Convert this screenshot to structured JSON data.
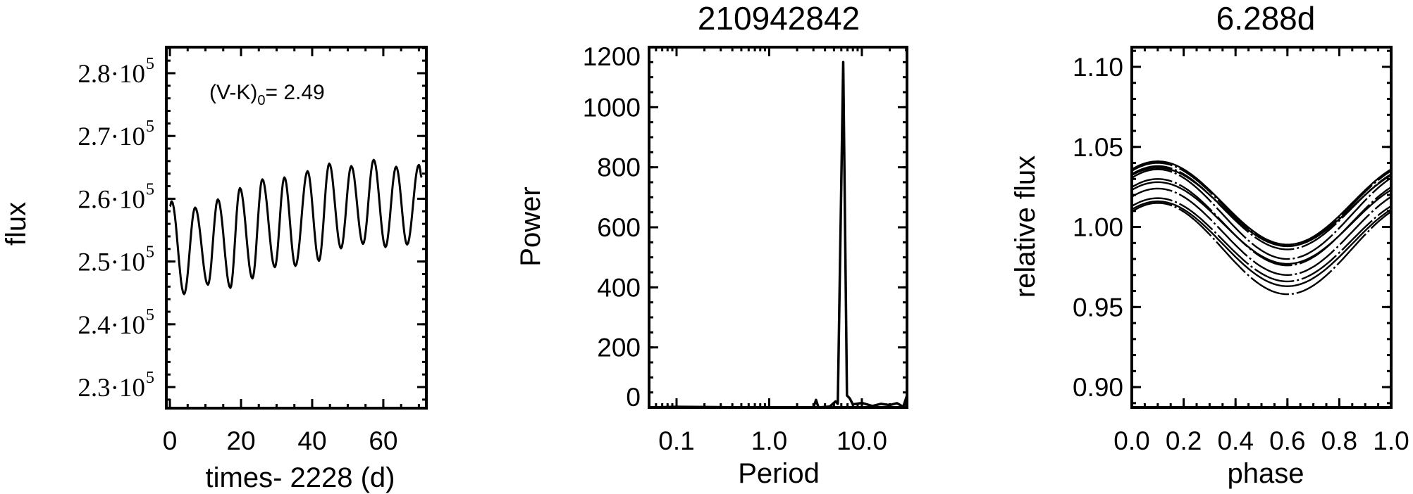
{
  "chart_data": [
    {
      "type": "line",
      "title": "",
      "xlabel": "times- 2228 (d)",
      "ylabel": "flux",
      "xlim": [
        -1,
        72.1
      ],
      "ylim": [
        226640,
        284150
      ],
      "xticks": [
        0,
        20,
        40,
        60
      ],
      "xtick_labels": [
        "0",
        "20",
        "40",
        "60"
      ],
      "yticks": [
        230000,
        240000,
        250000,
        260000,
        270000,
        280000
      ],
      "ytick_labels": [
        {
          "mantissa": "2.3",
          "base": "10",
          "exp": "5"
        },
        {
          "mantissa": "2.4",
          "base": "10",
          "exp": "5"
        },
        {
          "mantissa": "2.5",
          "base": "10",
          "exp": "5"
        },
        {
          "mantissa": "2.6",
          "base": "10",
          "exp": "5"
        },
        {
          "mantissa": "2.7",
          "base": "10",
          "exp": "5"
        },
        {
          "mantissa": "2.8",
          "base": "10",
          "exp": "5"
        }
      ],
      "annotation": {
        "prefix": "(V-K)",
        "subscript": "0",
        "suffix": "= 2.49"
      },
      "extrema": [
        [
          0,
          258800
        ],
        [
          0.5,
          259600
        ],
        [
          4.0,
          244800
        ],
        [
          7.1,
          258600
        ],
        [
          10.7,
          246300
        ],
        [
          13.5,
          259900
        ],
        [
          17.0,
          245800
        ],
        [
          19.7,
          261700
        ],
        [
          23.2,
          247300
        ],
        [
          26.0,
          263100
        ],
        [
          29.5,
          249100
        ],
        [
          32.2,
          263400
        ],
        [
          35.3,
          249300
        ],
        [
          38.7,
          264400
        ],
        [
          41.9,
          250100
        ],
        [
          44.8,
          265600
        ],
        [
          48.1,
          252100
        ],
        [
          51.0,
          265200
        ],
        [
          54.3,
          252800
        ],
        [
          57.3,
          266200
        ],
        [
          60.6,
          252300
        ],
        [
          63.6,
          265100
        ],
        [
          66.7,
          252700
        ],
        [
          70.0,
          265400
        ],
        [
          70.8,
          263400
        ]
      ]
    },
    {
      "type": "line",
      "title": "210942842",
      "xlabel": "Period",
      "ylabel": "Power",
      "xscale": "log",
      "xlim": [
        0.0505,
        30.7
      ],
      "ylim": [
        0,
        1200
      ],
      "xticks": [
        0.1,
        1.0,
        10.0
      ],
      "xtick_labels": [
        "0.1",
        "1.0",
        "10.0"
      ],
      "yticks": [
        0,
        200,
        400,
        600,
        800,
        1000,
        1200
      ],
      "ytick_labels": [
        "0",
        "200",
        "400",
        "600",
        "800",
        "1000",
        "1200"
      ],
      "points": [
        [
          0.0505,
          0
        ],
        [
          0.1,
          2
        ],
        [
          0.3,
          1
        ],
        [
          1.0,
          0
        ],
        [
          3.0,
          0
        ],
        [
          3.2,
          25
        ],
        [
          3.4,
          0
        ],
        [
          4.5,
          3
        ],
        [
          5.2,
          20
        ],
        [
          5.5,
          12
        ],
        [
          6.288,
          1150
        ],
        [
          6.9,
          40
        ],
        [
          7.4,
          30
        ],
        [
          8.0,
          10
        ],
        [
          10.0,
          15
        ],
        [
          13.0,
          5
        ],
        [
          16.0,
          12
        ],
        [
          20.0,
          8
        ],
        [
          24.0,
          14
        ],
        [
          28.0,
          2
        ],
        [
          30.7,
          40
        ]
      ]
    },
    {
      "type": "line",
      "title": "6.288d",
      "xlabel": "phase",
      "ylabel": "relative flux",
      "xlim": [
        0,
        1
      ],
      "ylim": [
        0.8873,
        1.1123
      ],
      "xticks": [
        0,
        0.2,
        0.4,
        0.6,
        0.8,
        1.0
      ],
      "xtick_labels": [
        "0.0",
        "0.2",
        "0.4",
        "0.6",
        "0.8",
        "1.0"
      ],
      "yticks": [
        0.9,
        0.95,
        1.0,
        1.05,
        1.1
      ],
      "ytick_labels": [
        "0.90",
        "0.95",
        "1.00",
        "1.05",
        "1.10"
      ],
      "phase_of_max": 0.1,
      "cycles": [
        {
          "max": 1.041,
          "min": 0.989
        },
        {
          "max": 1.04,
          "min": 0.988
        },
        {
          "max": 1.038,
          "min": 0.986
        },
        {
          "max": 1.037,
          "min": 0.988
        },
        {
          "max": 1.036,
          "min": 0.98
        },
        {
          "max": 1.03,
          "min": 0.976
        },
        {
          "max": 1.028,
          "min": 0.977
        },
        {
          "max": 1.024,
          "min": 0.97
        },
        {
          "max": 1.018,
          "min": 0.966
        },
        {
          "max": 1.016,
          "min": 0.963
        },
        {
          "max": 1.015,
          "min": 0.958
        }
      ]
    }
  ]
}
